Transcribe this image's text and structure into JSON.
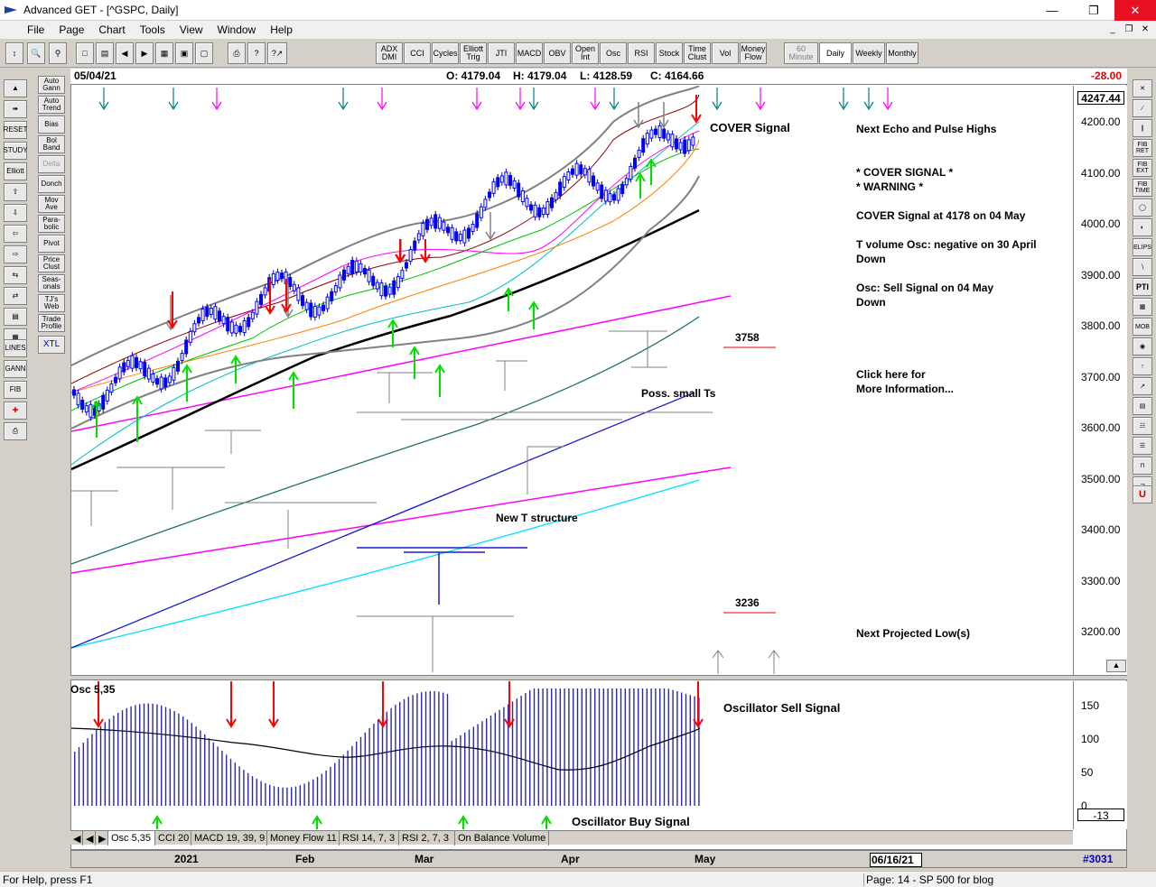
{
  "window": {
    "title": "Advanced GET - [^GSPC, Daily]"
  },
  "menu": [
    "File",
    "Page",
    "Chart",
    "Tools",
    "View",
    "Window",
    "Help"
  ],
  "toolbar": {
    "indicators": [
      "ADX DMI",
      "CCI",
      "Cycles",
      "Elliott Trig",
      "JTI",
      "MACD",
      "OBV",
      "Open Int",
      "Osc",
      "RSI",
      "Stock",
      "Time Clust",
      "Vol",
      "Money Flow"
    ],
    "timeframes": [
      "60 Minute",
      "Daily",
      "Weekly",
      "Monthly"
    ]
  },
  "left_tools": {
    "col2": [
      "Auto Gann",
      "Auto Trend",
      "Bias",
      "Bol Band",
      "Delta",
      "Donch",
      "Mov Ave",
      "Para-bolic",
      "Pivot",
      "Price Clust",
      "Seas-onals",
      "TJ's Web",
      "Trade Profile",
      "XTL"
    ],
    "col1": [
      "RESET",
      "STUDY",
      "Elliott",
      "LINES",
      "GANN",
      "FIB"
    ]
  },
  "right_tools": [
    "FIB RET",
    "FIB EXT",
    "FIB TIME",
    "ELIPS",
    "PTI",
    "MOB"
  ],
  "info": {
    "date": "05/04/21",
    "open": "O: 4179.04",
    "high": "H: 4179.04",
    "low": "L: 4128.59",
    "close": "C: 4164.66",
    "change": "-28.00"
  },
  "price_axis": {
    "current": "4247.44",
    "labels": [
      "4200.00",
      "4100.00",
      "4000.00",
      "3900.00",
      "3800.00",
      "3700.00",
      "3600.00",
      "3500.00",
      "3400.00",
      "3300.00",
      "3200.00"
    ]
  },
  "annotations": {
    "cover_signal": "COVER Signal",
    "next_echo": "Next Echo and Pulse Highs",
    "cover_star": "* COVER SIGNAL *",
    "warning": "* WARNING *",
    "cover_at": "COVER Signal at 4178 on 04 May",
    "tvol": "T volume Osc: negative on 30 April\nDown",
    "osc": "Osc: Sell Signal on 04 May\nDown",
    "click": "Click here for\nMore Information...",
    "t3758": "3758",
    "poss": "Poss. small Ts",
    "newt": "New T structure",
    "t3236": "3236",
    "proj_low": "Next Projected Low(s)"
  },
  "oscillator": {
    "label": "Osc 5,35",
    "labels": [
      "150",
      "100",
      "50",
      "0"
    ],
    "current": "-13",
    "sell": "Oscillator Sell Signal",
    "buy": "Oscillator Buy Signal"
  },
  "tabs": [
    "Osc 5,35",
    "CCI 20",
    "MACD 19, 39, 9",
    "Money Flow 11",
    "RSI 14, 7, 3",
    "RSI 2, 7, 3",
    "On Balance Volume"
  ],
  "datebar": {
    "months": [
      "2021",
      "Feb",
      "Mar",
      "Apr",
      "May"
    ],
    "end_date": "06/16/21",
    "count": "#3031"
  },
  "status": {
    "help": "For Help, press F1",
    "page": "Page: 14 - SP 500 for blog"
  },
  "colors": {
    "up_candle": "#0000ff",
    "down_candle": "#000000",
    "sell_arrow": "#ff0000",
    "buy_arrow": "#00ff00",
    "magenta": "#ff00ff"
  }
}
